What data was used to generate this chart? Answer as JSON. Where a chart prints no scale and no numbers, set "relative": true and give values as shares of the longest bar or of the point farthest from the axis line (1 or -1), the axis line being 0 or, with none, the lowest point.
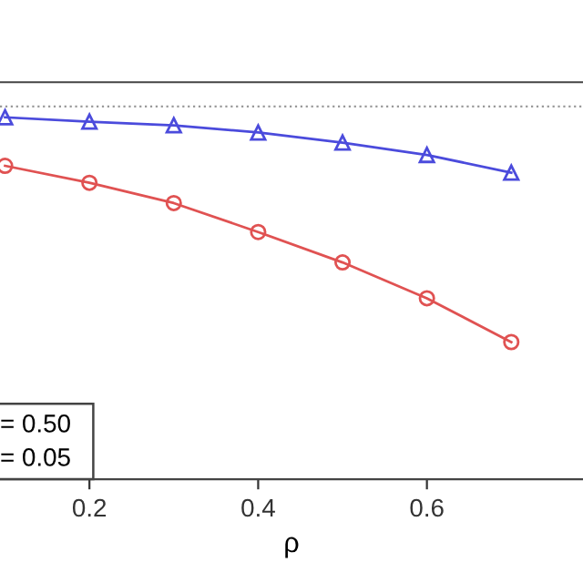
{
  "chart_data": {
    "type": "line",
    "relative": true,
    "xlabel": "ρ",
    "x": [
      0.1,
      0.2,
      0.3,
      0.4,
      0.5,
      0.6,
      0.7
    ],
    "xlim": [
      0.094,
      0.785
    ],
    "xticks": [
      0.2,
      0.4,
      0.6
    ],
    "series": [
      {
        "color": "#4b4bdc",
        "marker": "triangle",
        "values": [
          1.0,
          0.988,
          0.978,
          0.958,
          0.93,
          0.896,
          0.847
        ]
      },
      {
        "color": "#e05252",
        "marker": "circle",
        "values": [
          0.866,
          0.819,
          0.763,
          0.683,
          0.599,
          0.5,
          0.379
        ]
      }
    ],
    "ref_lines": [
      {
        "axis": "y",
        "value": 1.03,
        "color": "#999999",
        "line_style": "dotted"
      }
    ],
    "annotations": [
      "= 0.50",
      "= 0.05"
    ],
    "grid": false,
    "legend": false
  }
}
